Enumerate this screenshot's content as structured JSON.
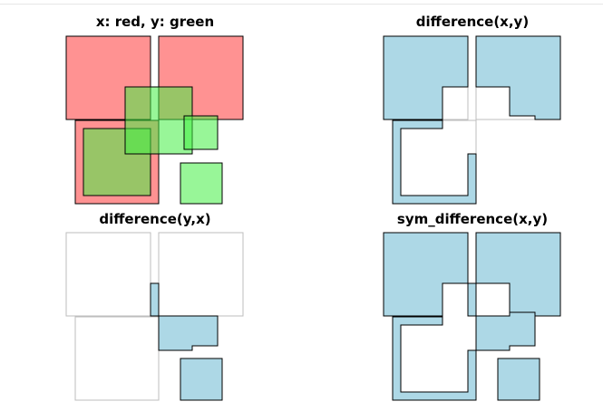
{
  "panels": [
    {
      "id": "p1",
      "title": "x: red, y: green"
    },
    {
      "id": "p2",
      "title": "difference(x,y)"
    },
    {
      "id": "p3",
      "title": "difference(y,x)"
    },
    {
      "id": "p4",
      "title": "sym_difference(x,y)"
    }
  ],
  "colors": {
    "x_fill": "#ff7f7f",
    "y_fill": "#66ee66",
    "result_fill": "#add8e6",
    "outline": "#000000",
    "ghost_outline": "#bdbdbd"
  }
}
